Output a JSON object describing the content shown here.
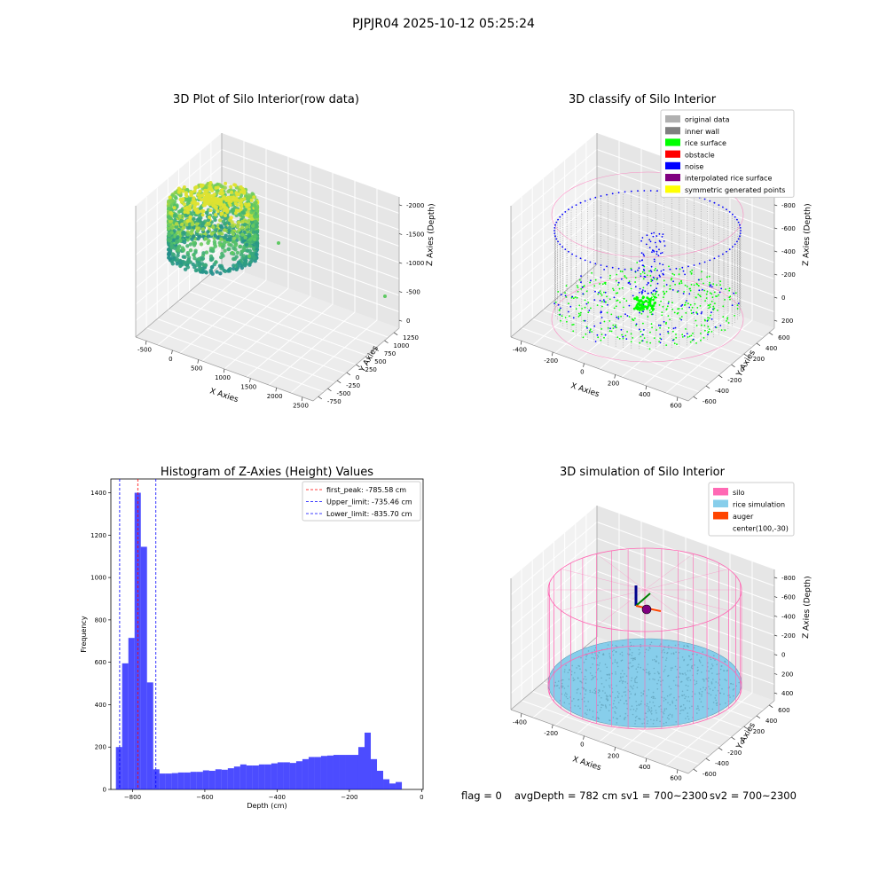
{
  "suptitle": "PJPJR04 2025-10-12 05:25:24",
  "footer": {
    "flag": "flag = 0",
    "avg_depth": "avgDepth = 782 cm",
    "sv1": "sv1 = 700~2300",
    "sv2": "sv2 = 700~2300"
  },
  "colors": {
    "original": "#b0b0b0",
    "inner_wall": "#808080",
    "rice_surface": "#00ff00",
    "obstacle": "#ff0000",
    "noise": "#0000ff",
    "interpolated": "#800080",
    "symmetric": "#ffff00",
    "silo": "#ff69b4",
    "rice_sim": "#87ceeb",
    "auger": "#ff4500",
    "hist_bar": "#0000ff",
    "peak_line": "#ff0000",
    "limit_line": "#0000ff"
  },
  "chart_data": [
    {
      "type": "scatter3d",
      "title": "3D Plot of Silo Interior(row data)",
      "xlabel": "X Axies",
      "ylabel": "Y Axies",
      "zlabel": "Z Axies (Depth)",
      "x_ticks": [
        "-500",
        "0",
        "500",
        "1000",
        "1500",
        "2000",
        "2500"
      ],
      "y_ticks": [
        "-750",
        "-500",
        "-250",
        "0",
        "250",
        "500",
        "750",
        "1000",
        "1250"
      ],
      "z_ticks": [
        "0",
        "-500",
        "-1000",
        "-1500",
        "-2000"
      ],
      "colormap": "viridis"
    },
    {
      "type": "scatter3d",
      "title": "3D classify of Silo Interior",
      "xlabel": "X Axies",
      "ylabel": "Y Axies",
      "zlabel": "Z Axies (Depth)",
      "x_ticks": [
        "-400",
        "-200",
        "0",
        "200",
        "400",
        "600"
      ],
      "y_ticks": [
        "-600",
        "-400",
        "-200",
        "0",
        "200",
        "400",
        "600"
      ],
      "z_ticks": [
        "200",
        "0",
        "-200",
        "-400",
        "-600",
        "-800"
      ],
      "legend": [
        {
          "label": "original data",
          "color": "#b0b0b0"
        },
        {
          "label": "inner wall",
          "color": "#808080"
        },
        {
          "label": "rice surface",
          "color": "#00ff00"
        },
        {
          "label": "obstacle",
          "color": "#ff0000"
        },
        {
          "label": "noise",
          "color": "#0000ff"
        },
        {
          "label": "interpolated rice surface",
          "color": "#800080"
        },
        {
          "label": "symmetric generated points",
          "color": "#ffff00"
        }
      ],
      "legend_position": "top-right"
    },
    {
      "type": "bar",
      "title": "Histogram of Z-Axies (Height) Values",
      "xlabel": "Depth (cm)",
      "ylabel": "Frequency",
      "xlim": [
        -860,
        4
      ],
      "ylim": [
        0,
        1465
      ],
      "x_ticks": [
        -800,
        -600,
        -400,
        -200,
        0
      ],
      "y_ticks": [
        0,
        200,
        400,
        600,
        800,
        1000,
        1200,
        1400
      ],
      "bin_start": -846,
      "bin_width": 17.2,
      "values": [
        200,
        595,
        715,
        1400,
        1145,
        505,
        95,
        75,
        75,
        77,
        80,
        80,
        83,
        83,
        90,
        88,
        95,
        93,
        100,
        108,
        118,
        113,
        113,
        118,
        118,
        123,
        128,
        128,
        125,
        133,
        143,
        153,
        153,
        158,
        160,
        163,
        163,
        163,
        163,
        200,
        268,
        143,
        88,
        48,
        28,
        35
      ],
      "vlines": [
        {
          "label": "first_peak: -785.58 cm",
          "x": -785.58,
          "color": "#ff0000"
        },
        {
          "label": "Upper_limit: -735.46 cm",
          "x": -735.46,
          "color": "#0000ff"
        },
        {
          "label": "Lower_limit: -835.70 cm",
          "x": -835.7,
          "color": "#0000ff"
        }
      ],
      "legend_position": "top-right"
    },
    {
      "type": "scatter3d",
      "title": "3D simulation of Silo Interior",
      "xlabel": "X Axies",
      "ylabel": "Y Axies",
      "zlabel": "Z Axies (Depth)",
      "x_ticks": [
        "-400",
        "-200",
        "0",
        "200",
        "400",
        "600"
      ],
      "y_ticks": [
        "-600",
        "-400",
        "-200",
        "0",
        "200",
        "400",
        "600"
      ],
      "z_ticks": [
        "400",
        "200",
        "0",
        "-200",
        "-400",
        "-600",
        "-800"
      ],
      "legend": [
        {
          "label": "silo",
          "color": "#ff69b4"
        },
        {
          "label": "rice simulation",
          "color": "#87ceeb"
        },
        {
          "label": "auger",
          "color": "#ff4500"
        },
        {
          "label": "center(100,-30)",
          "color": ""
        }
      ],
      "legend_position": "top-right"
    }
  ]
}
